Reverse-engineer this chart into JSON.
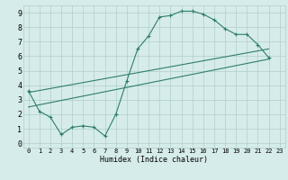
{
  "title": "",
  "xlabel": "Humidex (Indice chaleur)",
  "bg_color": "#d6ecea",
  "line_color": "#2e7d6e",
  "grid_color": "#aecfcc",
  "xlim": [
    -0.5,
    23.5
  ],
  "ylim": [
    -0.3,
    9.5
  ],
  "xticks": [
    0,
    1,
    2,
    3,
    4,
    5,
    6,
    7,
    8,
    9,
    10,
    11,
    12,
    13,
    14,
    15,
    16,
    17,
    18,
    19,
    20,
    21,
    22,
    23
  ],
  "yticks": [
    0,
    1,
    2,
    3,
    4,
    5,
    6,
    7,
    8,
    9
  ],
  "series_main": {
    "x": [
      0,
      1,
      2,
      3,
      4,
      5,
      6,
      7,
      8,
      9,
      10,
      11,
      12,
      13,
      14,
      15,
      16,
      17,
      18,
      19,
      20,
      21,
      22
    ],
    "y": [
      3.6,
      2.2,
      1.8,
      0.6,
      1.1,
      1.2,
      1.1,
      0.5,
      2.0,
      4.3,
      6.5,
      7.4,
      8.7,
      8.8,
      9.1,
      9.1,
      8.9,
      8.5,
      7.9,
      7.5,
      7.5,
      6.8,
      5.9
    ]
  },
  "series_line1": {
    "x": [
      0,
      22
    ],
    "y": [
      3.5,
      6.5
    ]
  },
  "series_line2": {
    "x": [
      0,
      22
    ],
    "y": [
      2.5,
      5.8
    ]
  }
}
